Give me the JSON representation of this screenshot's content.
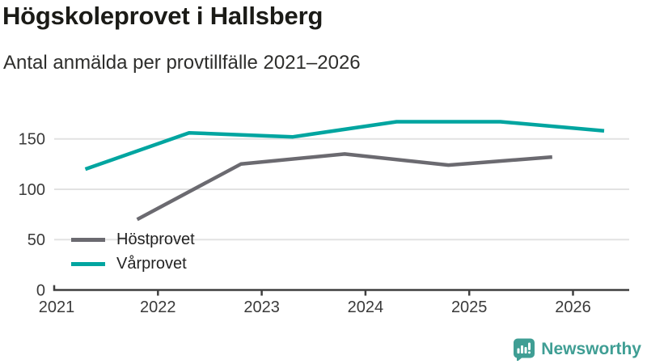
{
  "header": {
    "title": "Högskoleprovet i Hallsberg",
    "subtitle": "Antal anmälda per provtillfälle 2021–2026"
  },
  "chart_data": {
    "type": "line",
    "title": "Högskoleprovet i Hallsberg",
    "subtitle": "Antal anmälda per provtillfälle 2021–2026",
    "xlabel": "",
    "ylabel": "",
    "x_unit": "year",
    "x_tick_labels": [
      "2021",
      "2022",
      "2023",
      "2024",
      "2025",
      "2026"
    ],
    "y_ticks": [
      0,
      50,
      100,
      150
    ],
    "y_tick_labels": [
      "0",
      "50",
      "100",
      "150"
    ],
    "ylim": [
      0,
      178
    ],
    "xlim": [
      2021,
      2026.55
    ],
    "grid": "horizontal",
    "legend_position": "inside-lower-left",
    "series": [
      {
        "name": "Höstprovet",
        "color": "#6b6a70",
        "x": [
          2021.8,
          2022.8,
          2023.8,
          2024.8,
          2025.8
        ],
        "values": [
          70,
          125,
          135,
          124,
          132
        ]
      },
      {
        "name": "Vårprovet",
        "color": "#00a5a0",
        "x": [
          2021.3,
          2022.3,
          2023.3,
          2024.3,
          2025.3,
          2026.3
        ],
        "values": [
          120,
          156,
          152,
          167,
          167,
          158
        ]
      }
    ],
    "axis_color": "#3f3f3f",
    "gridline_color": "#e2e2e2",
    "tick_label_color": "#3a3a3a"
  },
  "branding": {
    "name": "Newsworthy",
    "color": "#3f9e94",
    "icon": "bar-chart-speech-bubble"
  }
}
